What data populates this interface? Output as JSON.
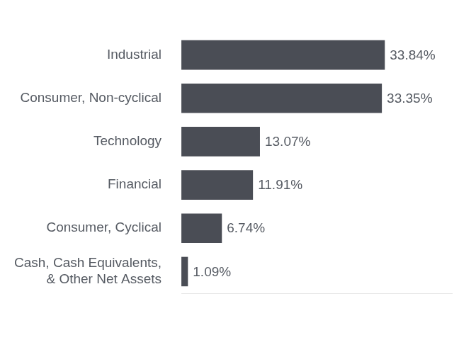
{
  "chart_data": {
    "type": "bar",
    "orientation": "horizontal",
    "categories": [
      "Industrial",
      "Consumer, Non-cyclical",
      "Technology",
      "Financial",
      "Consumer, Cyclical",
      "Cash, Cash Equivalents,\n& Other Net Assets"
    ],
    "values": [
      33.84,
      33.35,
      13.07,
      11.91,
      6.74,
      1.09
    ],
    "value_labels": [
      "33.84%",
      "33.35%",
      "13.07%",
      "11.91%",
      "6.74%",
      "1.09%"
    ],
    "color": "#4a4d55",
    "xlim": [
      0,
      45
    ],
    "grid": false,
    "data_labels": true,
    "tick_labels": "y"
  }
}
